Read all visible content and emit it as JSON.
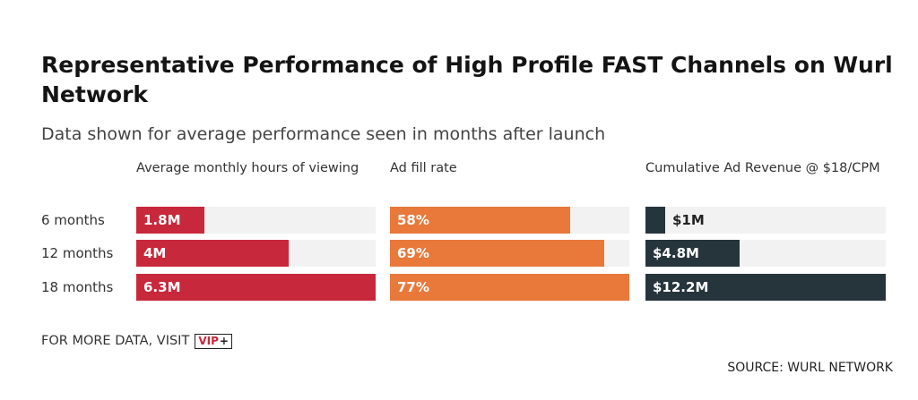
{
  "header": {
    "title": "Representative Performance of High Profile FAST Channels on Wurl Network",
    "subtitle": "Data shown for average performance seen in months after launch"
  },
  "footer": {
    "visit_text": "FOR MORE DATA, VISIT",
    "logo_text": "VIP",
    "logo_plus": "+",
    "source": "SOURCE: WURL NETWORK"
  },
  "chart_data": {
    "type": "bar",
    "orientation": "horizontal",
    "title": "Representative Performance of High Profile FAST Channels on Wurl Network",
    "subtitle": "Data shown for average performance seen in months after launch",
    "categories": [
      "6 months",
      "12 months",
      "18 months"
    ],
    "series": [
      {
        "name": "Average monthly hours of viewing",
        "values": [
          1.8,
          4.0,
          6.3
        ],
        "labels": [
          "1.8M",
          "4M",
          "6.3M"
        ],
        "max": 6.3,
        "color": "#c8283c"
      },
      {
        "name": "Ad fill rate",
        "values": [
          58,
          69,
          77
        ],
        "labels": [
          "58%",
          "69%",
          "77%"
        ],
        "max": 77,
        "color": "#e8793b"
      },
      {
        "name": "Cumulative Ad Revenue @ $18/CPM",
        "values": [
          1.0,
          4.8,
          12.2
        ],
        "labels": [
          "$1M",
          "$4.8M",
          "$12.2M"
        ],
        "max": 12.2,
        "color": "#26343c"
      }
    ],
    "grid": false,
    "legend": "none"
  }
}
